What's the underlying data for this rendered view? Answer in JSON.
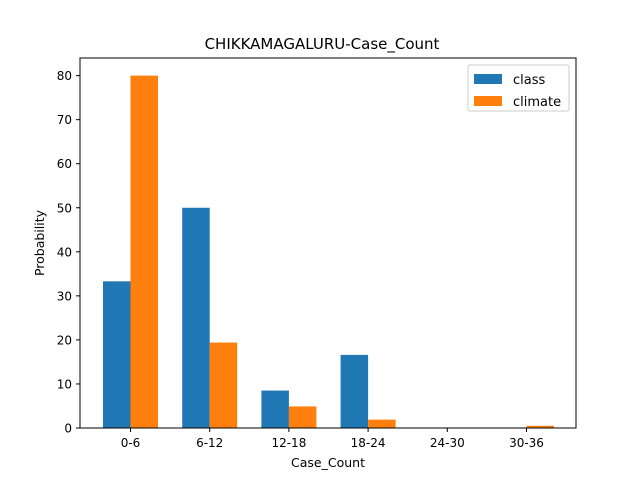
{
  "chart_data": {
    "type": "bar",
    "title": "CHIKKAMAGALURU-Case_Count",
    "xlabel": "Case_Count",
    "ylabel": "Probability",
    "categories": [
      "0-6",
      "6-12",
      "12-18",
      "18-24",
      "24-30",
      "30-36"
    ],
    "series": [
      {
        "name": "class",
        "color": "#1f77b4",
        "values": [
          33.3,
          50.0,
          8.5,
          16.6,
          0,
          0
        ]
      },
      {
        "name": "climate",
        "color": "#ff7f0e",
        "values": [
          80.0,
          19.4,
          4.9,
          1.9,
          0,
          0.5
        ]
      }
    ],
    "ylim": [
      0,
      84
    ],
    "yticks": [
      0,
      10,
      20,
      30,
      40,
      50,
      60,
      70,
      80
    ],
    "legend": "top-right",
    "grid": false
  }
}
